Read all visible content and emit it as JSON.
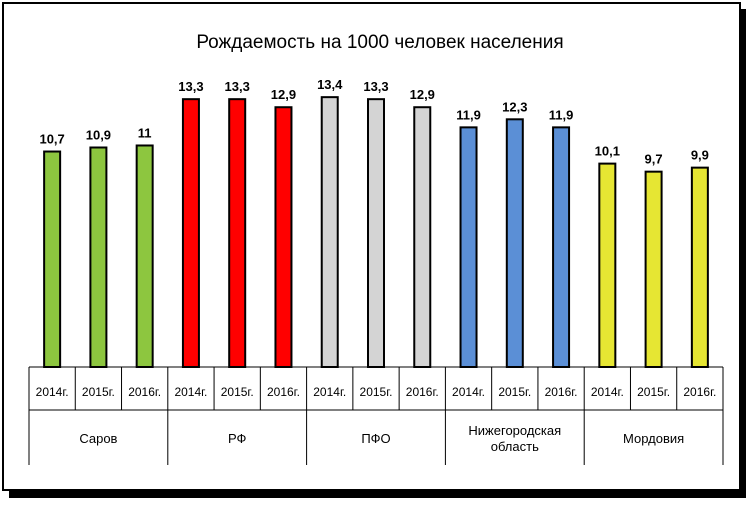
{
  "chart_data": {
    "type": "bar",
    "title": "Рождаемость на 1000 человек населения",
    "xlabel": "",
    "ylabel": "",
    "ylim": [
      0,
      14.5
    ],
    "grid": false,
    "legend": "none",
    "groups": [
      {
        "label": "Саров",
        "color": "#8dc63f",
        "bars": [
          {
            "year": "2014г.",
            "value": 10.7,
            "label": "10,7"
          },
          {
            "year": "2015г.",
            "value": 10.9,
            "label": "10,9"
          },
          {
            "year": "2016г.",
            "value": 11,
            "label": "11"
          }
        ]
      },
      {
        "label": "РФ",
        "color": "#ff0000",
        "bars": [
          {
            "year": "2014г.",
            "value": 13.3,
            "label": "13,3"
          },
          {
            "year": "2015г.",
            "value": 13.3,
            "label": "13,3"
          },
          {
            "year": "2016г.",
            "value": 12.9,
            "label": "12,9"
          }
        ]
      },
      {
        "label": "ПФО",
        "color": "#d4d4d4",
        "bars": [
          {
            "year": "2014г.",
            "value": 13.4,
            "label": "13,4"
          },
          {
            "year": "2015г.",
            "value": 13.3,
            "label": "13,3"
          },
          {
            "year": "2016г.",
            "value": 12.9,
            "label": "12,9"
          }
        ]
      },
      {
        "label": "Нижегородская область",
        "label_lines": [
          "Нижегородская",
          "область"
        ],
        "color": "#5b8fd6",
        "bars": [
          {
            "year": "2014г.",
            "value": 11.9,
            "label": "11,9"
          },
          {
            "year": "2015г.",
            "value": 12.3,
            "label": "12,3"
          },
          {
            "year": "2016г.",
            "value": 11.9,
            "label": "11,9"
          }
        ]
      },
      {
        "label": "Мордовия",
        "color": "#e6e633",
        "bars": [
          {
            "year": "2014г.",
            "value": 10.1,
            "label": "10,1"
          },
          {
            "year": "2015г.",
            "value": 9.7,
            "label": "9,7"
          },
          {
            "year": "2016г.",
            "value": 9.9,
            "label": "9,9"
          }
        ]
      }
    ]
  }
}
